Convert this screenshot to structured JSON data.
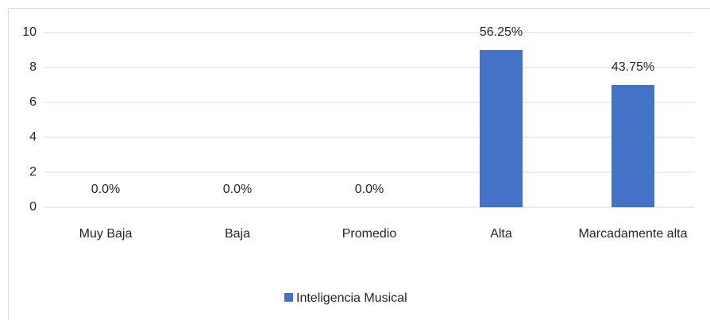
{
  "chart_data": {
    "type": "bar",
    "categories": [
      "Muy Baja",
      "Baja",
      "Promedio",
      "Alta",
      "Marcadamente alta"
    ],
    "series": [
      {
        "name": "Inteligencia Musical",
        "color": "#4472c4",
        "values": [
          0,
          0,
          0,
          9,
          7
        ]
      }
    ],
    "data_labels": {
      "values": [
        0.0,
        0.0,
        0.0,
        56.25,
        43.75
      ],
      "value_labels": [
        "0.0%",
        "0.0%",
        "0.0%",
        "56.25%",
        "43.75%"
      ]
    },
    "ylim": [
      0,
      10
    ],
    "yticks": [
      0,
      2,
      4,
      6,
      8,
      10
    ],
    "grid": true,
    "legend": "bottom"
  }
}
